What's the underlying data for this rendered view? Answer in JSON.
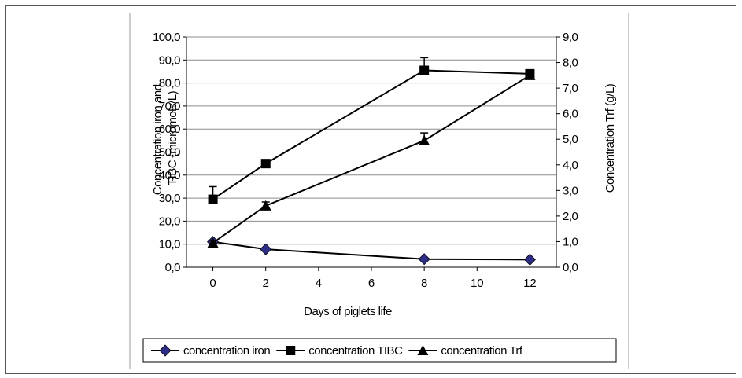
{
  "chart_data": {
    "type": "line",
    "title": "",
    "xlabel": "Days of piglets life",
    "ylabel_left": "Concentration iron and TIBC (micromols/L)",
    "ylabel_right": "Concentration Trf (g/L)",
    "xlim": [
      -1,
      13
    ],
    "x_ticks": [
      "0",
      "2",
      "4",
      "6",
      "8",
      "10",
      "12"
    ],
    "ylim_left": [
      0,
      100
    ],
    "ylim_right": [
      0,
      9
    ],
    "y_ticks_left": [
      "0,0",
      "10,0",
      "20,0",
      "30,0",
      "40,0",
      "50,0",
      "60,0",
      "70,0",
      "80,0",
      "90,0",
      "100,0"
    ],
    "y_ticks_right": [
      "0,0",
      "1,0",
      "2,0",
      "3,0",
      "4,0",
      "5,0",
      "6,0",
      "7,0",
      "8,0",
      "9,0"
    ],
    "grid": true,
    "legend_position": "bottom",
    "series": [
      {
        "name": "concentration iron",
        "axis": "left",
        "marker": "diamond",
        "color": "#2d2d86",
        "x": [
          0,
          2,
          8,
          12
        ],
        "values": [
          11.0,
          7.8,
          3.5,
          3.3
        ]
      },
      {
        "name": "concentration TIBC",
        "axis": "left",
        "marker": "square",
        "color": "#000000",
        "x": [
          0,
          2,
          8,
          12
        ],
        "values": [
          29.5,
          45.0,
          85.5,
          84.0
        ],
        "error_upper": [
          35.0,
          46.5,
          91.0,
          85.5
        ]
      },
      {
        "name": "concentration Trf",
        "axis": "right",
        "marker": "triangle",
        "color": "#000000",
        "x": [
          0,
          2,
          8,
          12
        ],
        "values": [
          0.95,
          2.4,
          4.95,
          7.5
        ],
        "error_upper": [
          1.05,
          2.55,
          5.25,
          7.6
        ]
      }
    ]
  }
}
